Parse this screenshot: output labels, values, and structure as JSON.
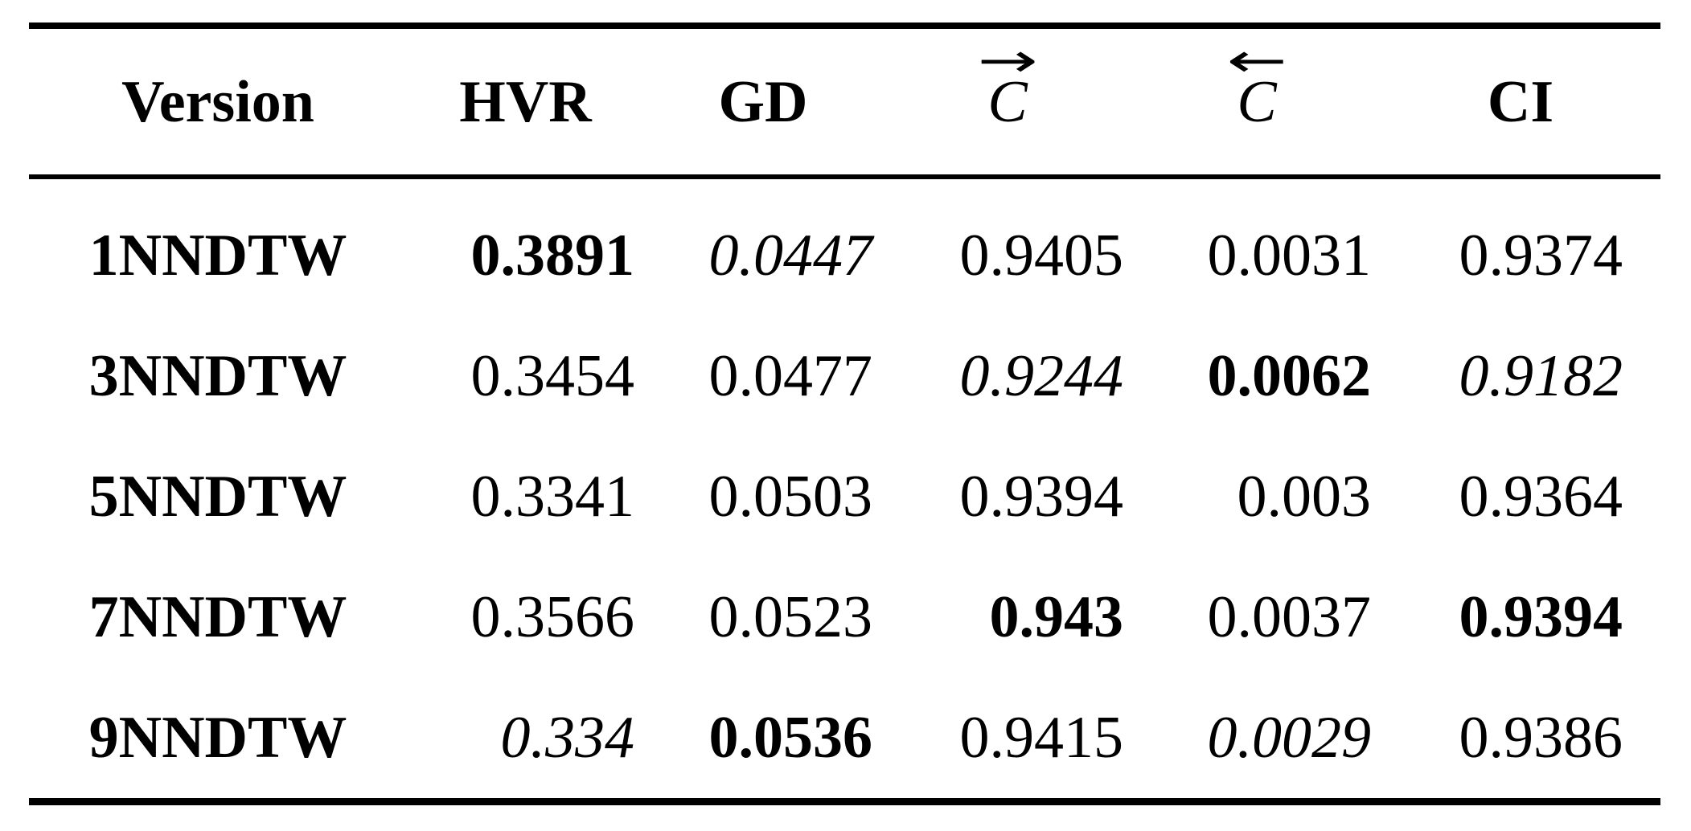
{
  "table": {
    "headers": [
      {
        "label": "Version"
      },
      {
        "label": "HVR"
      },
      {
        "label": "GD"
      },
      {
        "label": "C",
        "arrow": "→"
      },
      {
        "label": "C",
        "arrow": "←"
      },
      {
        "label": "CI"
      }
    ],
    "rows": [
      {
        "cells": [
          {
            "value": "1NNDTW",
            "style": "bold"
          },
          {
            "value": "0.3891",
            "style": "bold"
          },
          {
            "value": "0.0447",
            "style": "italic"
          },
          {
            "value": "0.9405",
            "style": "normal"
          },
          {
            "value": "0.0031",
            "style": "normal"
          },
          {
            "value": "0.9374",
            "style": "normal"
          }
        ]
      },
      {
        "cells": [
          {
            "value": "3NNDTW",
            "style": "bold"
          },
          {
            "value": "0.3454",
            "style": "normal"
          },
          {
            "value": "0.0477",
            "style": "normal"
          },
          {
            "value": "0.9244",
            "style": "italic"
          },
          {
            "value": "0.0062",
            "style": "bold"
          },
          {
            "value": "0.9182",
            "style": "italic"
          }
        ]
      },
      {
        "cells": [
          {
            "value": "5NNDTW",
            "style": "bold"
          },
          {
            "value": "0.3341",
            "style": "normal"
          },
          {
            "value": "0.0503",
            "style": "normal"
          },
          {
            "value": "0.9394",
            "style": "normal"
          },
          {
            "value": "0.003",
            "style": "normal"
          },
          {
            "value": "0.9364",
            "style": "normal"
          }
        ]
      },
      {
        "cells": [
          {
            "value": "7NNDTW",
            "style": "bold"
          },
          {
            "value": "0.3566",
            "style": "normal"
          },
          {
            "value": "0.0523",
            "style": "normal"
          },
          {
            "value": "0.943",
            "style": "bold"
          },
          {
            "value": "0.0037",
            "style": "normal"
          },
          {
            "value": "0.9394",
            "style": "bold"
          }
        ]
      },
      {
        "cells": [
          {
            "value": "9NNDTW",
            "style": "bold"
          },
          {
            "value": "0.334",
            "style": "italic"
          },
          {
            "value": "0.0536",
            "style": "bold"
          },
          {
            "value": "0.9415",
            "style": "normal"
          },
          {
            "value": "0.0029",
            "style": "italic"
          },
          {
            "value": "0.9386",
            "style": "normal"
          }
        ]
      }
    ]
  },
  "chart_data": {
    "type": "table",
    "columns": [
      "Version",
      "HVR",
      "GD",
      "C_forward",
      "C_backward",
      "CI"
    ],
    "rows": [
      [
        "1NNDTW",
        0.3891,
        0.0447,
        0.9405,
        0.0031,
        0.9374
      ],
      [
        "3NNDTW",
        0.3454,
        0.0477,
        0.9244,
        0.0062,
        0.9182
      ],
      [
        "5NNDTW",
        0.3341,
        0.0503,
        0.9394,
        0.003,
        0.9364
      ],
      [
        "7NNDTW",
        0.3566,
        0.0523,
        0.943,
        0.0037,
        0.9394
      ],
      [
        "9NNDTW",
        0.334,
        0.0536,
        0.9415,
        0.0029,
        0.9386
      ]
    ]
  }
}
